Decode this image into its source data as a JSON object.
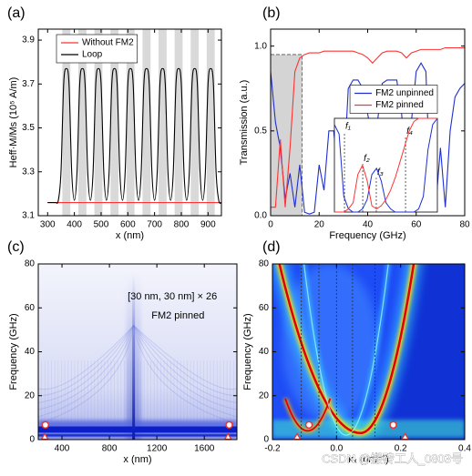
{
  "chart_data": [
    {
      "type": "line",
      "label": "(a)",
      "xlabel": "x (nm)",
      "ylabel": "Heff·M/Ms (10⁵ A/m)",
      "xlim": [
        265,
        950
      ],
      "ylim": [
        3.1,
        3.95
      ],
      "xticks": [
        300,
        400,
        500,
        600,
        700,
        800,
        900
      ],
      "yticks": [
        3.1,
        3.3,
        3.5,
        3.7,
        3.9
      ],
      "legend": "upper left",
      "smooth": true,
      "bands": [
        [
          355,
          385
        ],
        [
          415,
          445
        ],
        [
          475,
          505
        ],
        [
          535,
          565
        ],
        [
          595,
          625
        ],
        [
          655,
          685
        ],
        [
          715,
          745
        ],
        [
          775,
          805
        ],
        [
          835,
          865
        ],
        [
          895,
          925
        ]
      ],
      "band_color": "#d9d9d9",
      "x": [
        300,
        310,
        320,
        330,
        340,
        350,
        360,
        370,
        380,
        390,
        400,
        410,
        420,
        430,
        440,
        450,
        460,
        470,
        480,
        490,
        500,
        510,
        520,
        530,
        540,
        550,
        560,
        570,
        580,
        590,
        600,
        610,
        620,
        630,
        640,
        650,
        660,
        670,
        680,
        690,
        700,
        710,
        720,
        730,
        740,
        750,
        760,
        770,
        780,
        790,
        800,
        810,
        820,
        830,
        840,
        850,
        860,
        870,
        880,
        890,
        900,
        910,
        920,
        930,
        940,
        950
      ],
      "series": [
        {
          "name": "Without FM2",
          "color": "#ff3333",
          "values": [
            3.16,
            3.16,
            3.16,
            3.16,
            3.16,
            3.16,
            3.16,
            3.16,
            3.16,
            3.16,
            3.16,
            3.16,
            3.16,
            3.16,
            3.16,
            3.16,
            3.16,
            3.16,
            3.16,
            3.16,
            3.16,
            3.16,
            3.16,
            3.16,
            3.16,
            3.16,
            3.16,
            3.16,
            3.16,
            3.16,
            3.16,
            3.16,
            3.16,
            3.16,
            3.16,
            3.16,
            3.16,
            3.16,
            3.16,
            3.16,
            3.16,
            3.16,
            3.16,
            3.16,
            3.16,
            3.16,
            3.16,
            3.16,
            3.16,
            3.16,
            3.16,
            3.16,
            3.16,
            3.16,
            3.16,
            3.16,
            3.16,
            3.16,
            3.16,
            3.16,
            3.16,
            3.16,
            3.16,
            3.16,
            3.16,
            3.16
          ]
        },
        {
          "name": "Loop",
          "color": "#000000",
          "values": [
            3.16,
            3.16,
            3.16,
            3.16,
            3.17,
            3.3,
            3.7,
            3.77,
            3.7,
            3.3,
            3.17,
            3.3,
            3.7,
            3.77,
            3.7,
            3.3,
            3.17,
            3.3,
            3.7,
            3.77,
            3.7,
            3.3,
            3.17,
            3.3,
            3.7,
            3.77,
            3.7,
            3.3,
            3.17,
            3.3,
            3.7,
            3.77,
            3.7,
            3.3,
            3.17,
            3.3,
            3.7,
            3.77,
            3.7,
            3.3,
            3.17,
            3.3,
            3.7,
            3.77,
            3.7,
            3.3,
            3.17,
            3.3,
            3.7,
            3.77,
            3.7,
            3.3,
            3.17,
            3.3,
            3.7,
            3.77,
            3.7,
            3.3,
            3.17,
            3.3,
            3.7,
            3.77,
            3.7,
            3.3,
            3.17,
            3.16
          ]
        }
      ]
    },
    {
      "type": "line",
      "label": "(b)",
      "xlabel": "Frequency (GHz)",
      "ylabel": "Transmission (a.u.)",
      "xlim": [
        0,
        80
      ],
      "ylim": [
        0,
        1.1
      ],
      "xticks": [
        0,
        20,
        40,
        60,
        80
      ],
      "yticks": [
        {
          "value": 0,
          "label": "0.0"
        },
        0.5,
        {
          "value": 1,
          "label": "1.0"
        }
      ],
      "legend": "center right",
      "shade_x": [
        0,
        13
      ],
      "shade_y": [
        0,
        0.95
      ],
      "shade_color": "#d4d4d4",
      "x": [
        0,
        2,
        4,
        6,
        8,
        10,
        12,
        14,
        16,
        18,
        20,
        22,
        24,
        26,
        28,
        30,
        32,
        34,
        36,
        38,
        40,
        42,
        44,
        46,
        48,
        50,
        52,
        54,
        56,
        58,
        60,
        62,
        64,
        66,
        68,
        70,
        72,
        74,
        76,
        78,
        80
      ],
      "series": [
        {
          "name": "FM2 unpinned",
          "color": "#1f2fd0",
          "values": [
            0.85,
            0.55,
            0.4,
            0.1,
            0.25,
            0.05,
            0.3,
            0.02,
            0.01,
            0.02,
            0.3,
            0.15,
            0.5,
            0.5,
            0.2,
            0.2,
            0.75,
            0.8,
            0.8,
            0.75,
            0.6,
            0.45,
            0.55,
            0.78,
            0.8,
            0.8,
            0.8,
            0.6,
            0.25,
            0.55,
            0.85,
            0.9,
            0.85,
            0.1,
            0.05,
            0.4,
            0.05,
            0.5,
            0.7,
            0.75,
            0.78
          ]
        },
        {
          "name": "FM2 pinned",
          "color": "#ff3333",
          "values": [
            0.05,
            0.05,
            0.45,
            0.05,
            0.4,
            0.85,
            0.93,
            0.95,
            0.96,
            0.96,
            0.96,
            0.97,
            0.97,
            0.97,
            0.97,
            0.97,
            0.97,
            0.97,
            0.96,
            0.95,
            0.93,
            0.9,
            0.93,
            0.96,
            0.97,
            0.97,
            0.97,
            0.96,
            0.93,
            0.96,
            0.97,
            0.98,
            0.98,
            0.98,
            0.98,
            0.98,
            0.99,
            0.99,
            0.99,
            0.99,
            0.99
          ]
        }
      ],
      "inset": {
        "xlim": [
          26,
          70
        ],
        "ylim": [
          0,
          0.3
        ],
        "x": [
          26,
          28,
          30,
          32,
          34,
          36,
          38,
          40,
          42,
          44,
          46,
          48,
          50,
          52,
          54,
          56,
          58,
          60,
          62,
          64,
          66,
          68,
          70
        ],
        "series": [
          {
            "color": "#1f2fd0",
            "values": [
              0.28,
              0.25,
              0.05,
              0.01,
              0,
              0,
              0.01,
              0.04,
              0.12,
              0.14,
              0.1,
              0.03,
              0.01,
              0,
              0,
              0,
              0,
              0,
              0.01,
              0.05,
              0.2,
              0.28,
              0.3
            ]
          },
          {
            "color": "#ff3333",
            "values": [
              0,
              0,
              0,
              0.01,
              0.03,
              0.12,
              0.15,
              0.1,
              0.02,
              0.01,
              0.02,
              0.04,
              0.07,
              0.11,
              0.16,
              0.21,
              0.26,
              0.29,
              0.3,
              0.3,
              0.3,
              0.3,
              0.3
            ]
          }
        ],
        "f_lines": [
          {
            "label": "f₁",
            "x": 30.3,
            "y": 0.256
          },
          {
            "label": "f₂",
            "x": 38.1,
            "y": 0.154
          },
          {
            "label": "f₃",
            "x": 43.9,
            "y": 0.11
          },
          {
            "label": "f₄",
            "x": 56.4,
            "y": 0.24
          }
        ]
      }
    },
    {
      "type": "heatmap",
      "colormap": "Blues",
      "label": "(c)",
      "xlabel": "x (nm)",
      "ylabel": "Frequency (GHz)",
      "xlim": [
        200,
        1875
      ],
      "ylim": [
        0,
        80
      ],
      "xticks": [
        400,
        800,
        1200,
        1600
      ],
      "yticks": [
        0,
        20,
        40,
        60,
        80
      ],
      "annotations": [
        "[30 nm, 30 nm] × 26",
        "FM2 pinned"
      ],
      "marker_color": "#e8332e",
      "markers": [
        {
          "shape": "circle",
          "x": 260,
          "y": 6.7
        },
        {
          "shape": "circle",
          "x": 1810,
          "y": 6.7
        },
        {
          "shape": "triangle",
          "x": 255,
          "y": 1.2
        },
        {
          "shape": "triangle",
          "x": 1800,
          "y": 1.2
        }
      ]
    },
    {
      "type": "heatmap",
      "colormap": "jet",
      "label": "(d)",
      "xlabel": "kₓ (nm⁻¹)",
      "ylabel": "Frequency (GHz)",
      "xlim": [
        -0.2,
        0.4
      ],
      "ylim": [
        0,
        80
      ],
      "xticks": [
        -0.2,
        {
          "value": 0,
          "label": "0.0"
        },
        0.2,
        0.4
      ],
      "yticks": [
        0,
        20,
        40,
        60,
        80
      ],
      "vlines": [
        -0.11,
        -0.055,
        0,
        0.05,
        0.12
      ],
      "marker_color": "#e8332e",
      "markers": [
        {
          "shape": "circle",
          "x": -0.086,
          "y": 6.7
        },
        {
          "shape": "circle",
          "x": 0.177,
          "y": 6.7
        },
        {
          "shape": "triangle",
          "x": -0.123,
          "y": 1.2
        },
        {
          "shape": "triangle",
          "x": 0.214,
          "y": 1.2
        }
      ]
    }
  ],
  "watermark": "CSDN @搬砖工人_0803号"
}
